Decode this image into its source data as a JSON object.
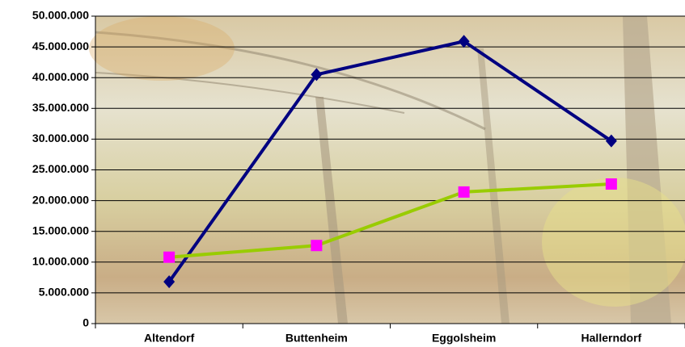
{
  "chart_data": {
    "type": "line",
    "categories": [
      "Altendorf",
      "Buttenheim",
      "Eggolsheim",
      "Hallerndorf"
    ],
    "series": [
      {
        "color": "#000080",
        "marker": "diamond",
        "marker_color": "#000080",
        "values": [
          6800000,
          40500000,
          45900000,
          29700000
        ]
      },
      {
        "color": "#99cc00",
        "marker": "square",
        "marker_color": "#ff00ff",
        "values": [
          10800000,
          12700000,
          21400000,
          22700000
        ]
      }
    ],
    "ylim": [
      0,
      50000000
    ],
    "yticks": [
      {
        "value": 0,
        "label": "0"
      },
      {
        "value": 5000000,
        "label": "5.000.000"
      },
      {
        "value": 10000000,
        "label": "10.000.000"
      },
      {
        "value": 15000000,
        "label": "15.000.000"
      },
      {
        "value": 20000000,
        "label": "20.000.000"
      },
      {
        "value": 25000000,
        "label": "25.000.000"
      },
      {
        "value": 30000000,
        "label": "30.000.000"
      },
      {
        "value": 35000000,
        "label": "35.000.000"
      },
      {
        "value": 40000000,
        "label": "40.000.000"
      },
      {
        "value": 45000000,
        "label": "45.000.000"
      },
      {
        "value": 50000000,
        "label": "50.000.000"
      }
    ],
    "grid": true
  }
}
